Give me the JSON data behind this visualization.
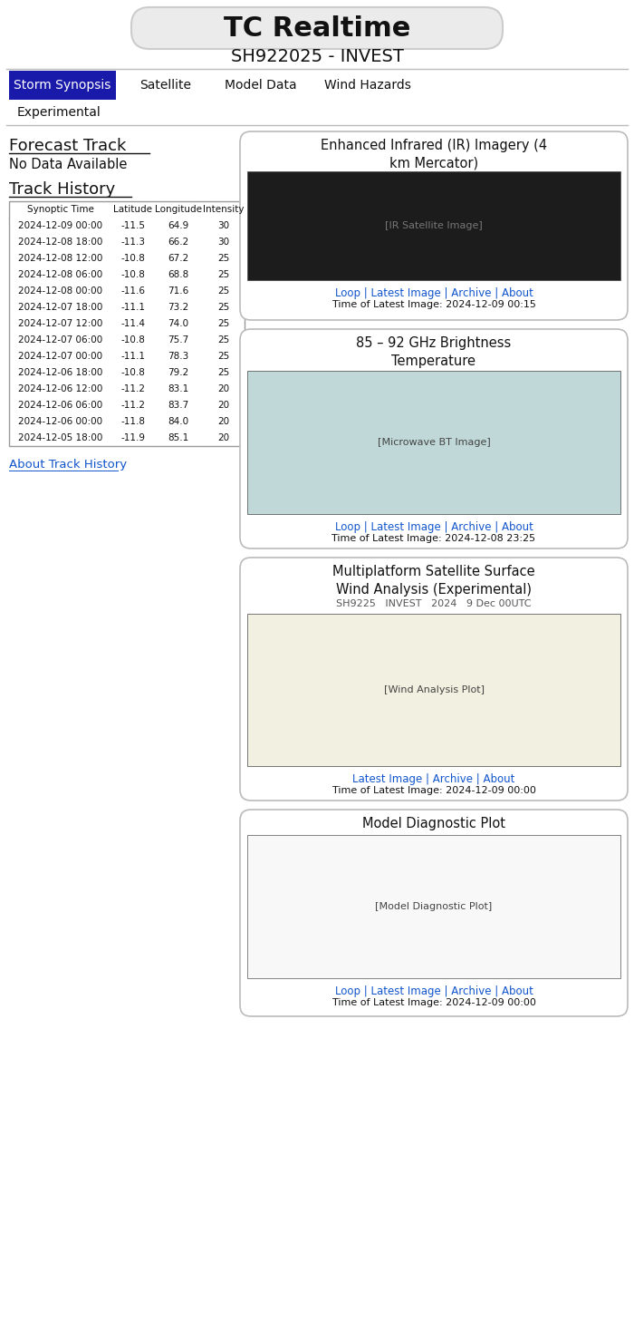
{
  "title": "TC Realtime",
  "subtitle": "SH922025 - INVEST",
  "nav_tabs": [
    "Storm Synopsis",
    "Satellite",
    "Model Data",
    "Wind Hazards"
  ],
  "nav_active": 0,
  "nav_sub": [
    "Experimental"
  ],
  "section1_title": "Forecast Track",
  "section1_text": "No Data Available",
  "section2_title": "Track History",
  "about_link": "About Track History",
  "table_headers": [
    "Synoptic Time",
    "Latitude",
    "Longitude",
    "Intensity"
  ],
  "table_data": [
    [
      "2024-12-09 00:00",
      "-11.5",
      "64.9",
      "30"
    ],
    [
      "2024-12-08 18:00",
      "-11.3",
      "66.2",
      "30"
    ],
    [
      "2024-12-08 12:00",
      "-10.8",
      "67.2",
      "25"
    ],
    [
      "2024-12-08 06:00",
      "-10.8",
      "68.8",
      "25"
    ],
    [
      "2024-12-08 00:00",
      "-11.6",
      "71.6",
      "25"
    ],
    [
      "2024-12-07 18:00",
      "-11.1",
      "73.2",
      "25"
    ],
    [
      "2024-12-07 12:00",
      "-11.4",
      "74.0",
      "25"
    ],
    [
      "2024-12-07 06:00",
      "-10.8",
      "75.7",
      "25"
    ],
    [
      "2024-12-07 00:00",
      "-11.1",
      "78.3",
      "25"
    ],
    [
      "2024-12-06 18:00",
      "-10.8",
      "79.2",
      "25"
    ],
    [
      "2024-12-06 12:00",
      "-11.2",
      "83.1",
      "20"
    ],
    [
      "2024-12-06 06:00",
      "-11.2",
      "83.7",
      "20"
    ],
    [
      "2024-12-06 00:00",
      "-11.8",
      "84.0",
      "20"
    ],
    [
      "2024-12-05 18:00",
      "-11.9",
      "85.1",
      "20"
    ]
  ],
  "card1_title": "Enhanced Infrared (IR) Imagery (4\nkm Mercator)",
  "card1_links": "Loop | Latest Image | Archive | About",
  "card1_time": "Time of Latest Image: 2024-12-09 00:15",
  "card2_title": "85 – 92 GHz Brightness\nTemperature",
  "card2_links": "Loop | Latest Image | Archive | About",
  "card2_time": "Time of Latest Image: 2024-12-08 23:25",
  "card3_title": "Multiplatform Satellite Surface\nWind Analysis (Experimental)",
  "card3_subtitle": "SH9225   INVEST   2024   9 Dec 00UTC",
  "card3_links": "Latest Image | Archive | About",
  "card3_time": "Time of Latest Image: 2024-12-09 00:00",
  "card4_title": "Model Diagnostic Plot",
  "card4_links": "Loop | Latest Image | Archive | About",
  "card4_time": "Time of Latest Image: 2024-12-09 00:00",
  "bg_color": "#ffffff",
  "nav_active_color": "#1a1aaa",
  "link_color": "#1155cc",
  "card_border_color": "#bbbbbb"
}
